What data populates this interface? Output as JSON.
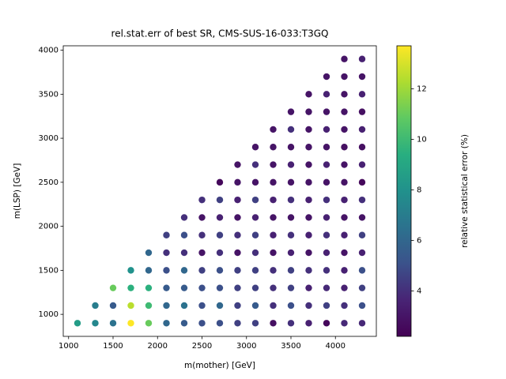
{
  "chart_data": {
    "type": "scatter",
    "title": "rel.stat.err of best SR, CMS-SUS-16-033:T3GQ",
    "xlabel": "m(mother) [GeV]",
    "ylabel": "m(LSP) [GeV]",
    "colorbar_label": "relative statistical error (%)",
    "colormap": "viridis",
    "x": [
      1100,
      1300,
      1500,
      1700,
      1900,
      2100,
      2300,
      2500,
      2700,
      2900,
      3100,
      3300,
      3500,
      3700,
      3900,
      4100,
      4300,
      1300,
      1500,
      1700,
      1900,
      2100,
      2300,
      2500,
      2700,
      2900,
      3100,
      3300,
      3500,
      3700,
      3900,
      4100,
      4300,
      1500,
      1700,
      1900,
      2100,
      2300,
      2500,
      2700,
      2900,
      3100,
      3300,
      3500,
      3700,
      3900,
      4100,
      4300,
      1700,
      1900,
      2100,
      2300,
      2500,
      2700,
      2900,
      3100,
      3300,
      3500,
      3700,
      3900,
      4100,
      4300,
      1900,
      2100,
      2300,
      2500,
      2700,
      2900,
      3100,
      3300,
      3500,
      3700,
      3900,
      4100,
      4300,
      2100,
      2300,
      2500,
      2700,
      2900,
      3100,
      3300,
      3500,
      3700,
      3900,
      4100,
      4300,
      2300,
      2500,
      2700,
      2900,
      3100,
      3300,
      3500,
      3700,
      3900,
      4100,
      4300,
      2500,
      2700,
      2900,
      3100,
      3300,
      3500,
      3700,
      3900,
      4100,
      4300,
      2700,
      2900,
      3100,
      3300,
      3500,
      3700,
      3900,
      4100,
      4300,
      2900,
      3100,
      3300,
      3500,
      3700,
      3900,
      4100,
      4300,
      3100,
      3300,
      3500,
      3700,
      3900,
      4100,
      4300,
      3300,
      3500,
      3700,
      3900,
      4100,
      4300,
      3500,
      3700,
      3900,
      4100,
      4300,
      3700,
      3900,
      4100,
      4300,
      3900,
      4100,
      4300,
      4100,
      4300
    ],
    "y": [
      900,
      900,
      900,
      900,
      900,
      900,
      900,
      900,
      900,
      900,
      900,
      900,
      900,
      900,
      900,
      900,
      900,
      1100,
      1100,
      1100,
      1100,
      1100,
      1100,
      1100,
      1100,
      1100,
      1100,
      1100,
      1100,
      1100,
      1100,
      1100,
      1100,
      1300,
      1300,
      1300,
      1300,
      1300,
      1300,
      1300,
      1300,
      1300,
      1300,
      1300,
      1300,
      1300,
      1300,
      1300,
      1500,
      1500,
      1500,
      1500,
      1500,
      1500,
      1500,
      1500,
      1500,
      1500,
      1500,
      1500,
      1500,
      1500,
      1700,
      1700,
      1700,
      1700,
      1700,
      1700,
      1700,
      1700,
      1700,
      1700,
      1700,
      1700,
      1700,
      1900,
      1900,
      1900,
      1900,
      1900,
      1900,
      1900,
      1900,
      1900,
      1900,
      1900,
      1900,
      2100,
      2100,
      2100,
      2100,
      2100,
      2100,
      2100,
      2100,
      2100,
      2100,
      2100,
      2300,
      2300,
      2300,
      2300,
      2300,
      2300,
      2300,
      2300,
      2300,
      2300,
      2500,
      2500,
      2500,
      2500,
      2500,
      2500,
      2500,
      2500,
      2500,
      2700,
      2700,
      2700,
      2700,
      2700,
      2700,
      2700,
      2700,
      2900,
      2900,
      2900,
      2900,
      2900,
      2900,
      2900,
      3100,
      3100,
      3100,
      3100,
      3100,
      3100,
      3300,
      3300,
      3300,
      3300,
      3300,
      3500,
      3500,
      3500,
      3500,
      3700,
      3700,
      3700,
      3900,
      3900
    ],
    "c": [
      8.5,
      7.5,
      6.5,
      13.7,
      11,
      6,
      5.5,
      5,
      5,
      4.5,
      4.5,
      2.8,
      4,
      3.5,
      2.5,
      3.8,
      3.8,
      7,
      5.5,
      12.5,
      10,
      6,
      6.5,
      5,
      6,
      4.5,
      5.5,
      4,
      5,
      4,
      4.5,
      4,
      5,
      11,
      9.5,
      9.5,
      5.5,
      5.5,
      5,
      5,
      4.5,
      4.5,
      4,
      4.5,
      3.5,
      3.8,
      3.5,
      4.5,
      8,
      6,
      5,
      6,
      4.5,
      5,
      4.5,
      4.5,
      4,
      4.5,
      4,
      4,
      3.5,
      5,
      6,
      4,
      4,
      3,
      4,
      3,
      4,
      3,
      3.5,
      3,
      3.5,
      3,
      3.5,
      4.5,
      5,
      4,
      4.5,
      4,
      4.5,
      3.5,
      4,
      3.5,
      4,
      3.5,
      4.5,
      4,
      3,
      3.5,
      3,
      3.5,
      3,
      3,
      3,
      3.5,
      3,
      3,
      4,
      4.5,
      3.5,
      4.5,
      3.5,
      4,
      3.5,
      4,
      3.5,
      4,
      2.5,
      3,
      3,
      3,
      3,
      3,
      3,
      3,
      2.5,
      3,
      4,
      3,
      3.5,
      3,
      3.5,
      3,
      3.5,
      3,
      3,
      3,
      3,
      3,
      2.8,
      2.8,
      3,
      4,
      3,
      3.5,
      3,
      3.5,
      3,
      3,
      3,
      3,
      2.8,
      3,
      3.5,
      3,
      3.5,
      3,
      3,
      3,
      3,
      3.5
    ],
    "xlim": [
      940,
      4460
    ],
    "ylim": [
      750,
      4050
    ],
    "xticks": [
      1000,
      1500,
      2000,
      2500,
      3000,
      3500,
      4000
    ],
    "yticks": [
      1000,
      1500,
      2000,
      2500,
      3000,
      3500,
      4000
    ],
    "clim": [
      2.2,
      13.7
    ],
    "cticks": [
      4,
      6,
      8,
      10,
      12
    ]
  }
}
